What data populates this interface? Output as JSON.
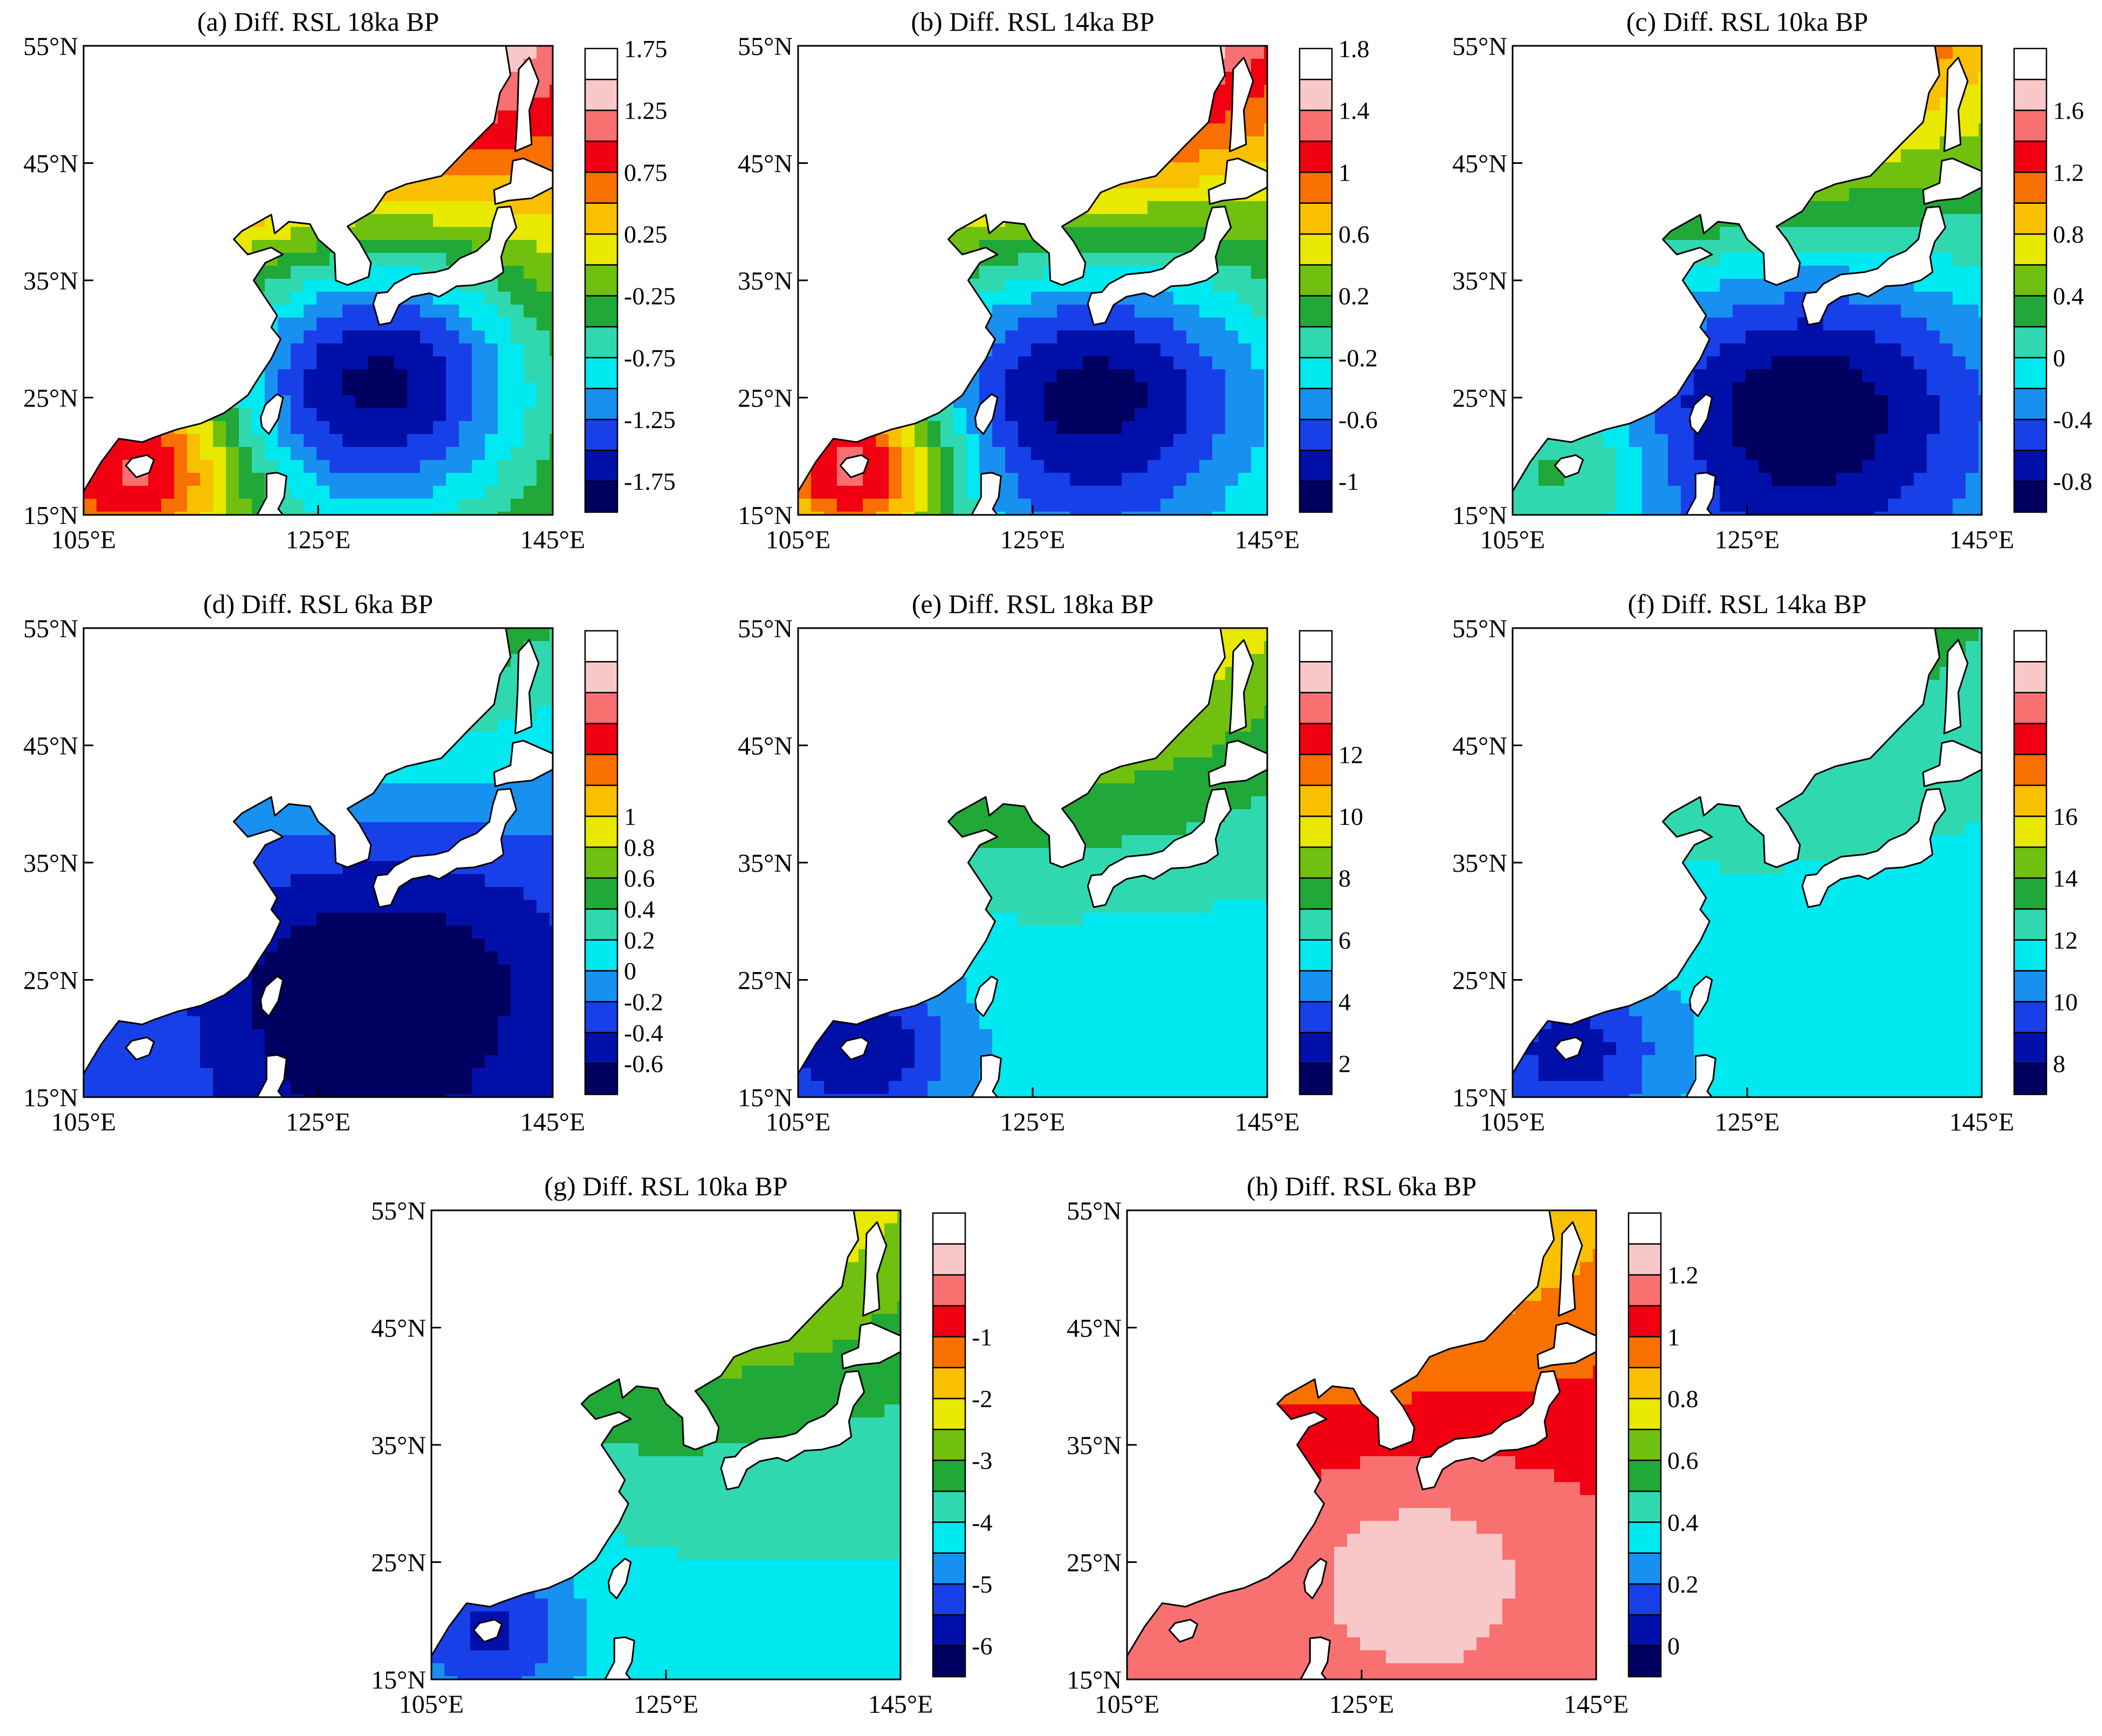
{
  "lat_labels": [
    "55°N",
    "45°N",
    "35°N",
    "25°N",
    "15°N"
  ],
  "lon_labels": [
    "105°E",
    "125°E",
    "145°E"
  ],
  "land_color": "#ffffff",
  "panels": [
    {
      "title": "(a) Diff. RSL 18ka BP",
      "colors": [
        "#000060",
        "#0010a8",
        "#1840e8",
        "#1890f0",
        "#00e8f0",
        "#30d8b0",
        "#20a838",
        "#70c010",
        "#e8e800",
        "#f8c000",
        "#f87000",
        "#f00010",
        "#f87070",
        "#f8c8c8",
        "#ffffff"
      ],
      "labels": [
        "-1.75",
        "-1.25",
        "-0.75",
        "-0.25",
        "0.25",
        "0.75",
        "1.25",
        "1.75"
      ],
      "label_rows": [
        1,
        3,
        5,
        7,
        9,
        11,
        13,
        15
      ],
      "field": {
        "base": 0,
        "radial_low": -1.85,
        "north_high": 2.0,
        "south_high": 1.2,
        "center": [
          130,
          27
        ],
        "radius": 16
      }
    },
    {
      "title": "(b) Diff. RSL 14ka BP",
      "colors": [
        "#000060",
        "#0010a8",
        "#1840e8",
        "#1890f0",
        "#00e8f0",
        "#30d8b0",
        "#20a838",
        "#70c010",
        "#e8e800",
        "#f8c000",
        "#f87000",
        "#f00010",
        "#f87070",
        "#f8c8c8",
        "#ffffff"
      ],
      "labels": [
        "-1",
        "-0.6",
        "-0.2",
        "0.2",
        "0.6",
        "1",
        "1.4",
        "1.8"
      ],
      "label_rows": [
        1,
        3,
        5,
        7,
        9,
        11,
        13,
        15
      ],
      "field": {
        "base": 0,
        "radial_low": -1.1,
        "north_high": 2.0,
        "south_high": 1.4,
        "center": [
          130,
          26
        ],
        "radius": 17
      }
    },
    {
      "title": "(c) Diff. RSL 10ka BP",
      "colors": [
        "#000060",
        "#0010a8",
        "#1840e8",
        "#1890f0",
        "#00e8f0",
        "#30d8b0",
        "#20a838",
        "#70c010",
        "#e8e800",
        "#f8c000",
        "#f87000",
        "#f00010",
        "#f87070",
        "#f8c8c8",
        "#ffffff"
      ],
      "labels": [
        "-0.8",
        "-0.4",
        "0",
        "0.4",
        "0.8",
        "1.2",
        "1.6"
      ],
      "label_rows": [
        1,
        3,
        5,
        7,
        9,
        11,
        13
      ],
      "field": {
        "base": -0.05,
        "radial_low": -0.9,
        "north_high": 1.6,
        "south_high": 0.4,
        "center": [
          130,
          24
        ],
        "radius": 18
      }
    },
    {
      "title": "(d) Diff. RSL 6ka BP",
      "colors": [
        "#000060",
        "#0010a8",
        "#1840e8",
        "#1890f0",
        "#00e8f0",
        "#30d8b0",
        "#20a838",
        "#70c010",
        "#e8e800",
        "#f8c000",
        "#f87000",
        "#f00010",
        "#f87070",
        "#f8c8c8",
        "#ffffff"
      ],
      "labels": [
        "-0.6",
        "-0.4",
        "-0.2",
        "0",
        "0.2",
        "0.4",
        "0.6",
        "0.8",
        "1"
      ],
      "label_rows": [
        1,
        2,
        3,
        4,
        5,
        6,
        7,
        8,
        9
      ],
      "field": {
        "base": -0.2,
        "radial_low": -0.6,
        "north_high": 1.0,
        "south_high": 0.1,
        "center": [
          130,
          24
        ],
        "radius": 20
      }
    },
    {
      "title": "(e) Diff. RSL 18ka BP",
      "colors": [
        "#000060",
        "#0010a8",
        "#1840e8",
        "#1890f0",
        "#00e8f0",
        "#30d8b0",
        "#20a838",
        "#70c010",
        "#e8e800",
        "#f8c000",
        "#f87000",
        "#f00010",
        "#f87070",
        "#f8c8c8",
        "#ffffff"
      ],
      "labels": [
        "2",
        "4",
        "6",
        "8",
        "10",
        "12"
      ],
      "label_rows": [
        1,
        3,
        5,
        7,
        9,
        11
      ],
      "field": {
        "base": 5.5,
        "radial_low": 0,
        "north_high": 6,
        "south_high": -3.5,
        "center": [
          130,
          24
        ],
        "radius": 18
      }
    },
    {
      "title": "(f) Diff. RSL 14ka BP",
      "colors": [
        "#000060",
        "#0010a8",
        "#1840e8",
        "#1890f0",
        "#00e8f0",
        "#30d8b0",
        "#20a838",
        "#70c010",
        "#e8e800",
        "#f8c000",
        "#f87000",
        "#f00010",
        "#f87070",
        "#f8c8c8",
        "#ffffff"
      ],
      "labels": [
        "8",
        "10",
        "12",
        "14",
        "16"
      ],
      "label_rows": [
        1,
        3,
        5,
        7,
        9
      ],
      "field": {
        "base": 11.5,
        "radial_low": 0,
        "north_high": 2.5,
        "south_high": -3.0,
        "center": [
          130,
          24
        ],
        "radius": 18
      }
    },
    {
      "title": "(g) Diff. RSL 10ka BP",
      "colors": [
        "#000060",
        "#0010a8",
        "#1840e8",
        "#1890f0",
        "#00e8f0",
        "#30d8b0",
        "#20a838",
        "#70c010",
        "#e8e800",
        "#f8c000",
        "#f87000",
        "#f00010",
        "#f87070",
        "#f8c8c8",
        "#ffffff"
      ],
      "labels": [
        "-6",
        "-5",
        "-4",
        "-3",
        "-2",
        "-1"
      ],
      "label_rows": [
        1,
        3,
        5,
        7,
        9,
        11
      ],
      "field": {
        "base": -4.0,
        "radial_low": 0,
        "north_high": 2.5,
        "south_high": -1.6,
        "center": [
          130,
          24
        ],
        "radius": 18
      }
    },
    {
      "title": "(h) Diff. RSL 6ka BP",
      "colors": [
        "#000060",
        "#0010a8",
        "#1840e8",
        "#1890f0",
        "#00e8f0",
        "#30d8b0",
        "#20a838",
        "#70c010",
        "#e8e800",
        "#f8c000",
        "#f87000",
        "#f00010",
        "#f87070",
        "#f8c8c8",
        "#ffffff"
      ],
      "labels": [
        "0",
        "0.2",
        "0.4",
        "0.6",
        "0.8",
        "1",
        "1.2"
      ],
      "label_rows": [
        1,
        3,
        5,
        7,
        9,
        11,
        13
      ],
      "field": {
        "base": 1.1,
        "radial_low": 0.15,
        "north_high": -0.4,
        "south_high": 0,
        "center": [
          130,
          24
        ],
        "radius": 14
      }
    }
  ]
}
